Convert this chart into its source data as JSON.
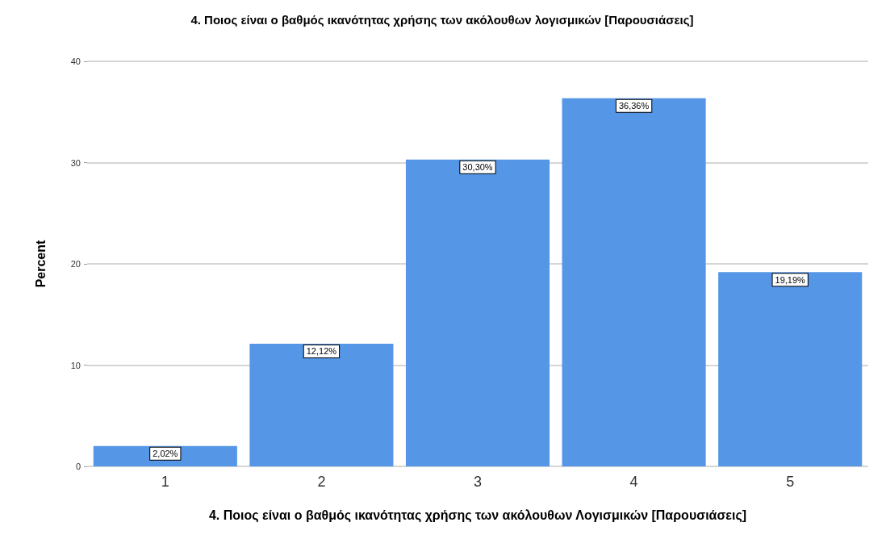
{
  "chart_data": {
    "type": "bar",
    "title": "4. Ποιος είναι ο βαθμός ικανότητας χρήσης των ακόλουθων λογισμικών [Παρουσιάσεις]",
    "xlabel": "4. Ποιος είναι ο βαθμός ικανότητας χρήσης των ακόλουθων Λογισμικών [Παρουσιάσεις]",
    "ylabel": "Percent",
    "categories": [
      "1",
      "2",
      "3",
      "4",
      "5"
    ],
    "values": [
      2.02,
      12.12,
      30.3,
      36.36,
      19.19
    ],
    "value_labels": [
      "2,02%",
      "12,12%",
      "30,30%",
      "36,36%",
      "19,19%"
    ],
    "color": "#5596e6",
    "ylim": [
      0,
      40
    ],
    "yticks": [
      0,
      10,
      20,
      30,
      40
    ],
    "grid": "y"
  }
}
